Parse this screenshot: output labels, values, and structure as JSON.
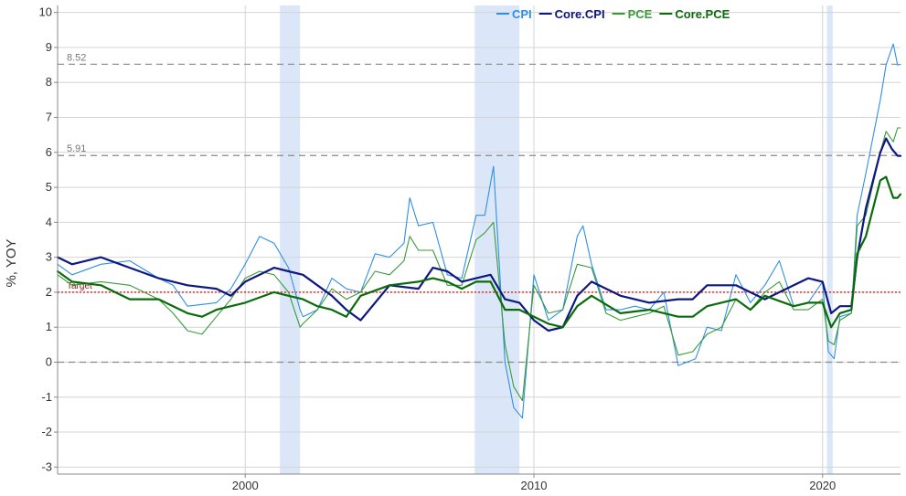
{
  "chart_data": {
    "type": "line",
    "ylabel": "%, YOY",
    "ylim": [
      -3.2,
      10.2
    ],
    "xlim": [
      1993.5,
      2022.7
    ],
    "yticks": [
      -3,
      -2,
      -1,
      0,
      1,
      2,
      3,
      4,
      5,
      6,
      7,
      8,
      9,
      10
    ],
    "xticks": [
      2000,
      2010,
      2020
    ],
    "grid": true,
    "legend_position": "top-center",
    "recessions": [
      [
        2001.2,
        2001.9
      ],
      [
        2007.95,
        2009.5
      ],
      [
        2020.15,
        2020.35
      ]
    ],
    "reference_lines": [
      {
        "value": 8.52,
        "label": "8.52",
        "style": "dashed",
        "color": "#888888"
      },
      {
        "value": 5.91,
        "label": "5.91",
        "style": "dashed",
        "color": "#888888"
      },
      {
        "value": 0,
        "label": "",
        "style": "dashed",
        "color": "#888888"
      },
      {
        "value": 2,
        "label": "Target",
        "style": "dotted",
        "color": "#e02020"
      }
    ],
    "series": [
      {
        "name": "CPI",
        "color": "#2f8fe6",
        "width": 1.1,
        "x": [
          1993.5,
          1994,
          1995,
          1996,
          1997,
          1997.5,
          1998,
          1999,
          1999.5,
          2000,
          2000.5,
          2001,
          2001.5,
          2001.9,
          2002,
          2002.5,
          2003,
          2003.5,
          2004,
          2004.5,
          2005,
          2005.5,
          2005.7,
          2006,
          2006.5,
          2007,
          2007.5,
          2008,
          2008.3,
          2008.6,
          2009,
          2009.3,
          2009.6,
          2010,
          2010.5,
          2011,
          2011.5,
          2011.7,
          2012,
          2012.5,
          2013,
          2013.5,
          2014,
          2014.5,
          2015,
          2015.3,
          2015.6,
          2016,
          2016.5,
          2017,
          2017.5,
          2018,
          2018.5,
          2019,
          2019.5,
          2020,
          2020.2,
          2020.4,
          2020.6,
          2021,
          2021.2,
          2021.5,
          2022,
          2022.2,
          2022.45,
          2022.6,
          2022.7
        ],
        "y": [
          2.8,
          2.5,
          2.8,
          2.9,
          2.4,
          2.2,
          1.6,
          1.7,
          2.1,
          2.8,
          3.6,
          3.4,
          2.7,
          1.5,
          1.3,
          1.5,
          2.4,
          2.1,
          2.0,
          3.1,
          3.0,
          3.4,
          4.7,
          3.9,
          4.0,
          2.5,
          2.4,
          4.2,
          4.2,
          5.6,
          0.0,
          -1.3,
          -1.6,
          2.5,
          1.2,
          1.5,
          3.6,
          3.9,
          2.8,
          1.5,
          1.5,
          1.6,
          1.5,
          2.0,
          -0.1,
          0.0,
          0.1,
          1.0,
          0.9,
          2.5,
          1.7,
          2.2,
          2.9,
          1.6,
          1.7,
          2.3,
          0.3,
          0.1,
          1.3,
          1.4,
          4.2,
          5.4,
          7.5,
          8.5,
          9.1,
          8.5,
          8.52
        ]
      },
      {
        "name": "PCE",
        "color": "#3a9a3a",
        "width": 1.1,
        "x": [
          1993.5,
          1994,
          1995,
          1996,
          1997,
          1997.5,
          1998,
          1998.5,
          1999,
          1999.5,
          2000,
          2000.5,
          2001,
          2001.5,
          2001.9,
          2002,
          2002.5,
          2003,
          2003.5,
          2004,
          2004.5,
          2005,
          2005.5,
          2005.7,
          2006,
          2006.5,
          2007,
          2007.5,
          2008,
          2008.3,
          2008.6,
          2009,
          2009.3,
          2009.6,
          2010,
          2010.5,
          2011,
          2011.5,
          2012,
          2012.5,
          2013,
          2013.5,
          2014,
          2014.5,
          2015,
          2015.5,
          2016,
          2016.5,
          2017,
          2017.5,
          2018,
          2018.5,
          2019,
          2019.5,
          2020,
          2020.2,
          2020.4,
          2020.6,
          2021,
          2021.2,
          2021.5,
          2022,
          2022.2,
          2022.45,
          2022.6,
          2022.7
        ],
        "y": [
          2.5,
          2.2,
          2.3,
          2.2,
          1.8,
          1.4,
          0.9,
          0.8,
          1.3,
          1.8,
          2.4,
          2.6,
          2.5,
          2.0,
          1.0,
          1.1,
          1.5,
          2.1,
          1.8,
          2.0,
          2.6,
          2.5,
          2.9,
          3.6,
          3.2,
          3.2,
          2.2,
          2.2,
          3.5,
          3.7,
          4.0,
          0.5,
          -0.7,
          -1.1,
          2.2,
          1.4,
          1.5,
          2.8,
          2.7,
          1.4,
          1.2,
          1.3,
          1.4,
          1.6,
          0.2,
          0.3,
          0.8,
          1.0,
          1.8,
          1.5,
          2.0,
          2.3,
          1.5,
          1.5,
          1.8,
          0.6,
          0.5,
          1.2,
          1.4,
          3.9,
          4.2,
          6.0,
          6.6,
          6.3,
          6.7,
          6.7
        ]
      },
      {
        "name": "Core.CPI",
        "color": "#0d1780",
        "width": 2.2,
        "x": [
          1993.5,
          1994,
          1995,
          1996,
          1997,
          1998,
          1999,
          1999.5,
          2000,
          2001,
          2001.5,
          2002,
          2002.5,
          2003,
          2003.5,
          2004,
          2004.5,
          2005,
          2006,
          2006.5,
          2007,
          2007.5,
          2008,
          2008.5,
          2009,
          2009.5,
          2010,
          2010.5,
          2011,
          2011.5,
          2012,
          2013,
          2014,
          2015,
          2015.5,
          2016,
          2016.5,
          2017,
          2018,
          2019,
          2019.5,
          2020,
          2020.3,
          2020.6,
          2021,
          2021.2,
          2021.5,
          2022,
          2022.2,
          2022.4,
          2022.6,
          2022.7
        ],
        "y": [
          3.0,
          2.8,
          3.0,
          2.7,
          2.4,
          2.2,
          2.1,
          1.9,
          2.3,
          2.7,
          2.6,
          2.5,
          2.2,
          1.9,
          1.5,
          1.2,
          1.7,
          2.2,
          2.1,
          2.7,
          2.6,
          2.3,
          2.4,
          2.5,
          1.8,
          1.7,
          1.2,
          0.9,
          1.0,
          1.9,
          2.3,
          1.9,
          1.7,
          1.8,
          1.8,
          2.2,
          2.2,
          2.2,
          1.8,
          2.2,
          2.4,
          2.3,
          1.4,
          1.6,
          1.6,
          3.0,
          4.4,
          6.0,
          6.4,
          6.1,
          5.9,
          5.9
        ]
      },
      {
        "name": "Core.PCE",
        "color": "#0a6b0a",
        "width": 2.2,
        "x": [
          1993.5,
          1994,
          1995,
          1996,
          1997,
          1998,
          1998.5,
          1999,
          2000,
          2001,
          2001.5,
          2002,
          2002.5,
          2003,
          2003.5,
          2004,
          2005,
          2006,
          2006.5,
          2007,
          2007.5,
          2008,
          2008.5,
          2009,
          2009.5,
          2010,
          2010.5,
          2011,
          2011.5,
          2012,
          2013,
          2014,
          2015,
          2015.5,
          2016,
          2017,
          2017.5,
          2018,
          2019,
          2019.5,
          2020,
          2020.3,
          2020.6,
          2021,
          2021.2,
          2021.5,
          2022,
          2022.2,
          2022.45,
          2022.6,
          2022.7
        ],
        "y": [
          2.6,
          2.3,
          2.2,
          1.8,
          1.8,
          1.4,
          1.3,
          1.5,
          1.7,
          2.0,
          1.9,
          1.8,
          1.6,
          1.5,
          1.3,
          1.9,
          2.2,
          2.3,
          2.4,
          2.3,
          2.1,
          2.3,
          2.3,
          1.5,
          1.5,
          1.3,
          1.1,
          1.0,
          1.6,
          1.9,
          1.4,
          1.5,
          1.3,
          1.3,
          1.6,
          1.8,
          1.5,
          1.9,
          1.6,
          1.7,
          1.7,
          1.0,
          1.4,
          1.5,
          3.1,
          3.6,
          5.2,
          5.3,
          4.7,
          4.7,
          4.8
        ]
      }
    ]
  }
}
